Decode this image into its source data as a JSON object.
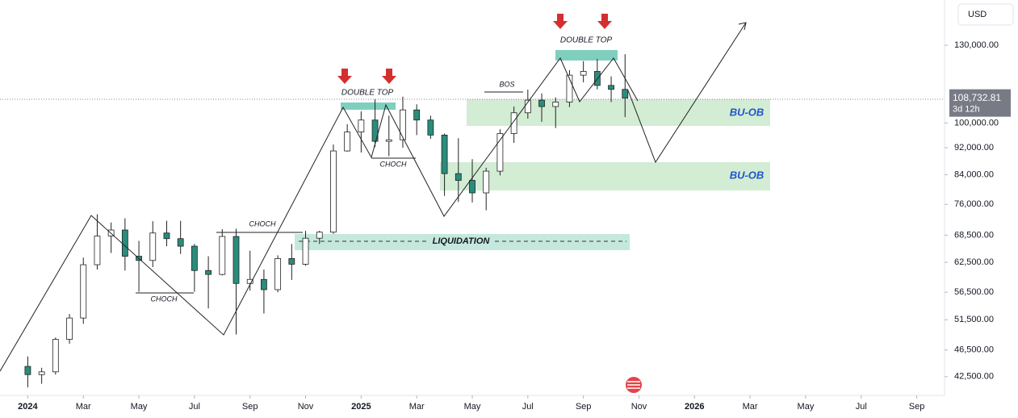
{
  "chart_data": {
    "type": "candlestick",
    "currency": "USD",
    "log_scale": true,
    "up_color": "#ffffff",
    "down_color": "#2a8c7c",
    "x": [
      0,
      0.5,
      1,
      1.5,
      2,
      2.5,
      3,
      3.5,
      4,
      4.5,
      5,
      5.5,
      6,
      6.5,
      7,
      7.5,
      8,
      8.5,
      9,
      9.5,
      10,
      10.5,
      11,
      11.5,
      12,
      12.5,
      13,
      13.5,
      14,
      14.5,
      15,
      15.5,
      16,
      16.5,
      17,
      17.5,
      18,
      18.5,
      19,
      19.5,
      20,
      20.5,
      21,
      21.5
    ],
    "open": [
      44000,
      42800,
      43200,
      48200,
      51800,
      62000,
      68300,
      69700,
      63800,
      62900,
      69000,
      67700,
      66000,
      60800,
      60000,
      68200,
      58200,
      59000,
      57000,
      63300,
      62100,
      67800,
      69200,
      91000,
      97000,
      101000,
      94000,
      94500,
      104500,
      101000,
      96000,
      84300,
      82400,
      79000,
      85000,
      96500,
      103500,
      108000,
      105700,
      107300,
      117500,
      119000,
      113500,
      112000
    ],
    "high": [
      45500,
      43800,
      48500,
      52500,
      63500,
      73500,
      71500,
      72500,
      67200,
      71800,
      71900,
      71900,
      66500,
      63800,
      69900,
      70000,
      65000,
      61000,
      64000,
      66500,
      69500,
      69500,
      93000,
      99600,
      104000,
      108300,
      102500,
      109300,
      106500,
      102500,
      96500,
      95000,
      88500,
      86000,
      97900,
      105700,
      111900,
      110500,
      109000,
      119500,
      123200,
      124100,
      117000,
      126100
    ],
    "low": [
      41000,
      41500,
      42800,
      47500,
      50800,
      61000,
      64500,
      60800,
      56600,
      61500,
      66000,
      64300,
      56600,
      53500,
      59800,
      49000,
      56800,
      52600,
      56500,
      58900,
      61800,
      66500,
      68800,
      90800,
      90500,
      92200,
      89400,
      92000,
      96000,
      94800,
      78200,
      76600,
      76500,
      74500,
      83800,
      93500,
      101500,
      100400,
      98300,
      105500,
      114700,
      112000,
      107300,
      102000
    ],
    "close": [
      42800,
      43200,
      48200,
      51800,
      62000,
      68300,
      69700,
      63800,
      62900,
      69000,
      67700,
      66000,
      60800,
      60000,
      68200,
      58200,
      59000,
      57000,
      63300,
      62100,
      67800,
      69200,
      91000,
      97000,
      101000,
      94000,
      94500,
      104500,
      101000,
      96000,
      84300,
      82400,
      79000,
      85000,
      96500,
      103500,
      108000,
      105700,
      107300,
      117500,
      119000,
      113500,
      112000,
      108732.81
    ],
    "last_price_label": "108,732.81",
    "countdown": "3d 12h",
    "ylim": [
      39900,
      151400
    ],
    "yticks": [
      {
        "value": 42500,
        "label": "42,500.00"
      },
      {
        "value": 46500,
        "label": "46,500.00"
      },
      {
        "value": 51500,
        "label": "51,500.00"
      },
      {
        "value": 56500,
        "label": "56,500.00"
      },
      {
        "value": 62500,
        "label": "62,500.00"
      },
      {
        "value": 68500,
        "label": "68,500.00"
      },
      {
        "value": 76000,
        "label": "76,000.00"
      },
      {
        "value": 84000,
        "label": "84,000.00"
      },
      {
        "value": 92000,
        "label": "92,000.00"
      },
      {
        "value": 100000,
        "label": "100,000.00"
      },
      {
        "value": 130000,
        "label": "130,000.00"
      }
    ],
    "xlim": [
      -1,
      33
    ],
    "xticks": [
      {
        "value": 0,
        "label": "2024"
      },
      {
        "value": 2,
        "label": "Mar"
      },
      {
        "value": 4,
        "label": "May"
      },
      {
        "value": 6,
        "label": "Jul"
      },
      {
        "value": 8,
        "label": "Sep"
      },
      {
        "value": 10,
        "label": "Nov"
      },
      {
        "value": 12,
        "label": "2025"
      },
      {
        "value": 14,
        "label": "Mar"
      },
      {
        "value": 16,
        "label": "May"
      },
      {
        "value": 18,
        "label": "Jul"
      },
      {
        "value": 20,
        "label": "Sep"
      },
      {
        "value": 22,
        "label": "Nov"
      },
      {
        "value": 24,
        "label": "2026"
      },
      {
        "value": 26,
        "label": "Mar"
      },
      {
        "value": 28,
        "label": "May"
      },
      {
        "value": 30,
        "label": "Jul"
      },
      {
        "value": 32,
        "label": "Sep"
      }
    ],
    "annotations": [
      "DOUBLE TOP",
      "DOUBLE TOP",
      "CHOCH",
      "CHOCH",
      "CHOCH",
      "BOS",
      "LIQUIDATION",
      "BU-OB",
      "BU-OB"
    ]
  }
}
